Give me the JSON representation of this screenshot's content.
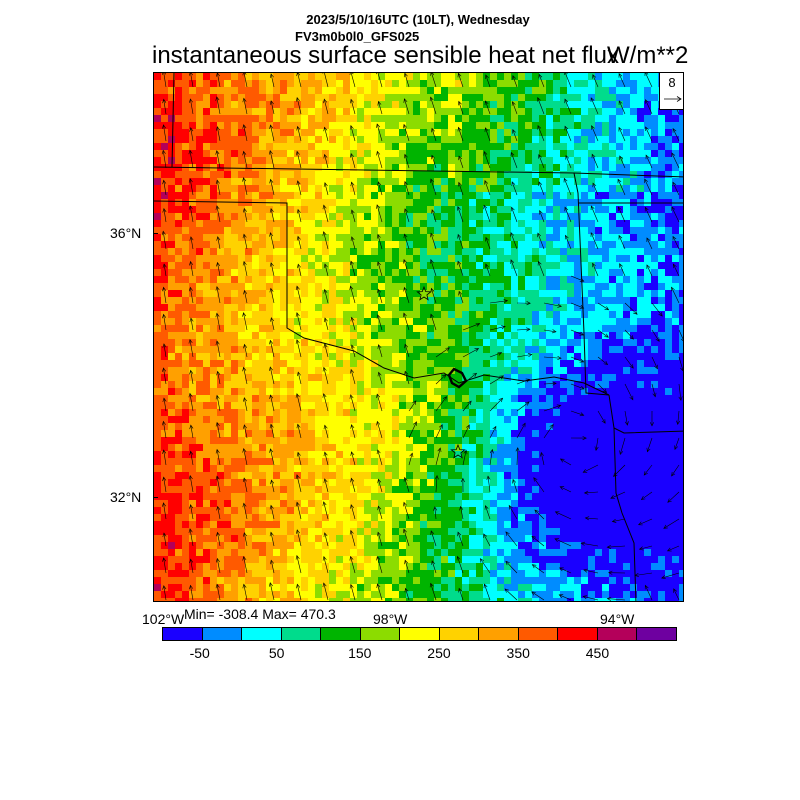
{
  "header": {
    "date_line": "2023/5/10/16UTC (10LT), Wednesday",
    "model_line": "FV3m0b0l0_GFS025",
    "variable_title": "instantaneous surface sensible heat net flux",
    "units": "W/m**2"
  },
  "map": {
    "lat_labels": [
      "36°N",
      "32°N"
    ],
    "lon_labels": [
      "102°W",
      "98°W",
      "94°W"
    ],
    "stats": "Min= -308.4 Max= 470.3",
    "vector_key_value": "8",
    "markers": [
      "star",
      "star"
    ]
  },
  "colorbar": {
    "colors": [
      "#1a00ff",
      "#008cff",
      "#00ffff",
      "#00dc8c",
      "#00b400",
      "#8cdc00",
      "#ffff00",
      "#ffd200",
      "#ffa000",
      "#ff5a00",
      "#ff0000",
      "#b4005a",
      "#6e00a0"
    ],
    "labels": [
      "-50",
      "50",
      "150",
      "250",
      "350",
      "450"
    ]
  }
}
